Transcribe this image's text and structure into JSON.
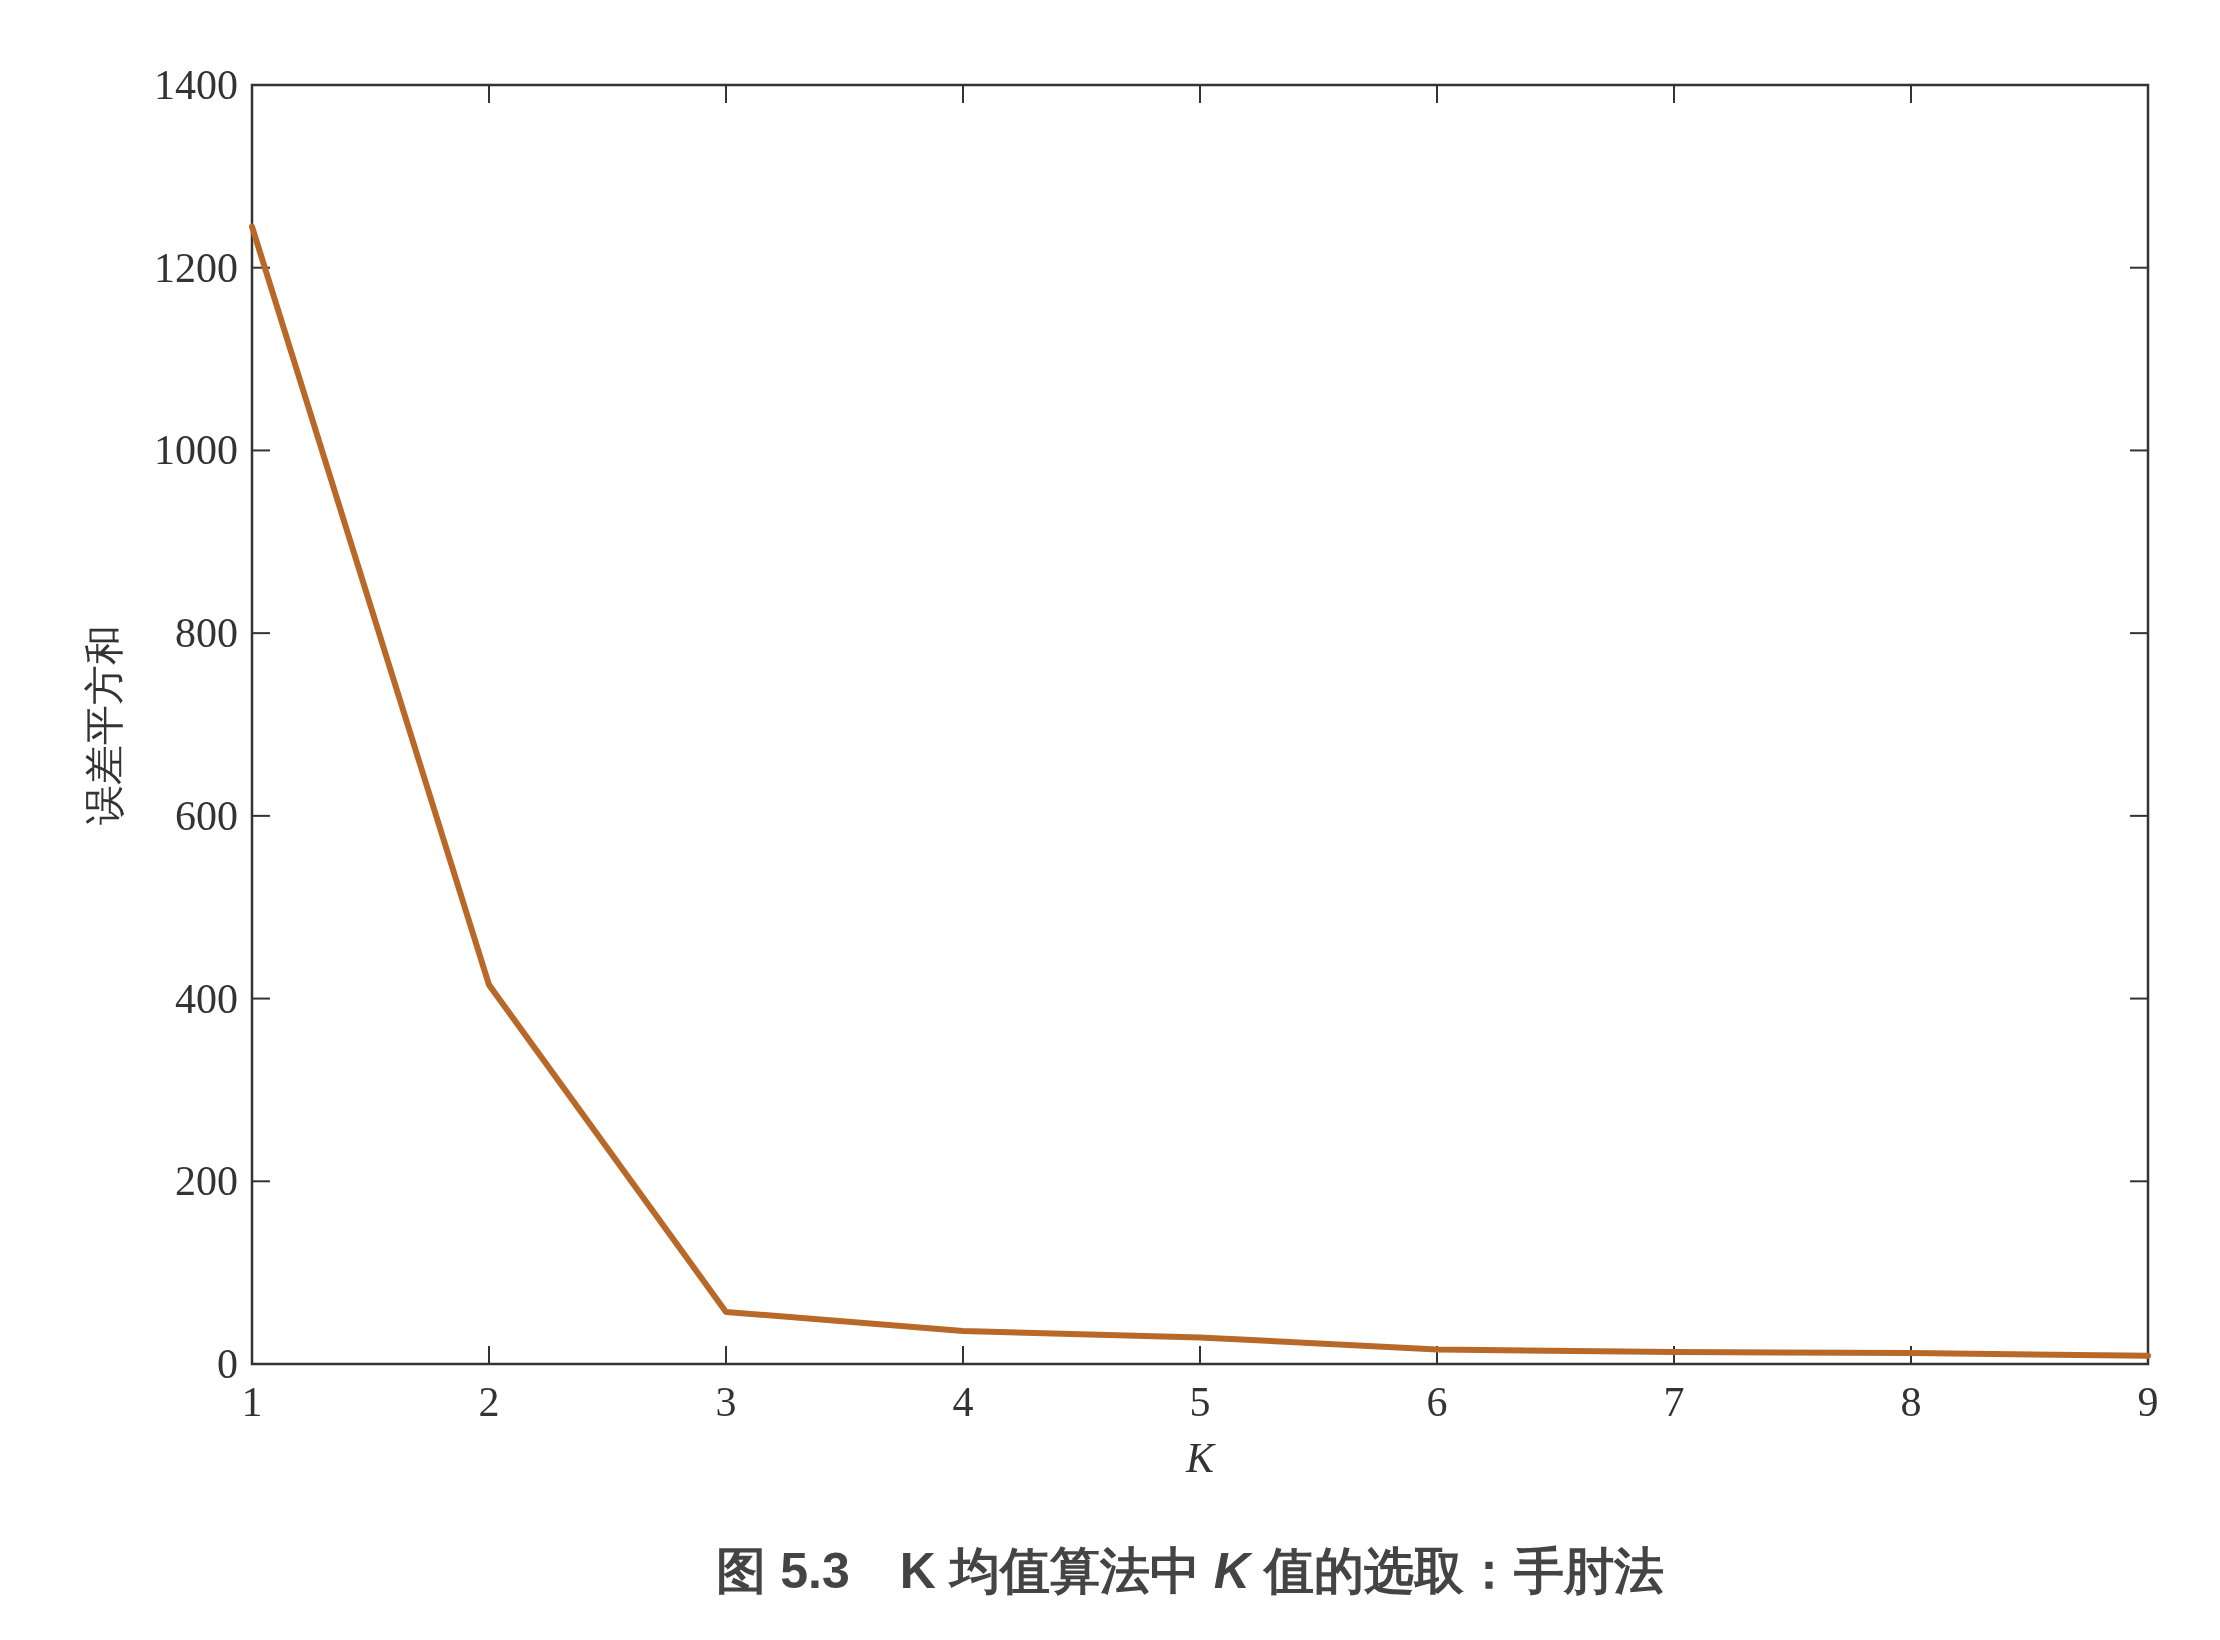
{
  "chart_data": {
    "type": "line",
    "title": "图 5.3　K 均值算法中 *K* 值的选取：手肘法",
    "xlabel": "K",
    "ylabel": "误差平方和",
    "x": [
      1,
      2,
      3,
      4,
      5,
      6,
      7,
      8,
      9
    ],
    "series": [
      {
        "color": "#b8692a",
        "values": [
          1245,
          415,
          57,
          36,
          29,
          16,
          13,
          12,
          9
        ]
      }
    ],
    "xlim": [
      1,
      9
    ],
    "xticks": [
      1,
      2,
      3,
      4,
      5,
      6,
      7,
      8,
      9
    ],
    "ylim": [
      0,
      1400
    ],
    "yticks": [
      0,
      200,
      400,
      600,
      800,
      1000,
      1200,
      1400
    ],
    "grid": false,
    "marker": "none",
    "line_style": "solid"
  }
}
